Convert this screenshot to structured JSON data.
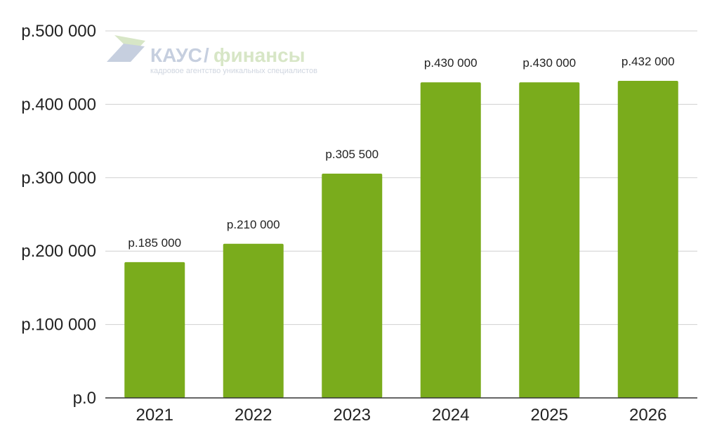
{
  "colors": {
    "bar": "#7aac1c",
    "grid": "#d0d0d0",
    "axis": "#333333",
    "watermark_blue": "#c6cfdf",
    "watermark_green": "#d7e6c6"
  },
  "watermark": {
    "brand_a": "КАУС",
    "brand_b": "финансы",
    "tagline": "кадровое агентство уникальных специалистов"
  },
  "chart_data": {
    "type": "bar",
    "categories": [
      "2021",
      "2022",
      "2023",
      "2024",
      "2025",
      "2026"
    ],
    "values": [
      185000,
      210000,
      305500,
      430000,
      430000,
      432000
    ],
    "data_labels": [
      "р.185 000",
      "р.210 000",
      "р.305 500",
      "р.430 000",
      "р.430 000",
      "р.432 000"
    ],
    "y_ticks": [
      0,
      100000,
      200000,
      300000,
      400000,
      500000
    ],
    "y_tick_labels": [
      "р.0",
      "р.100 000",
      "р.200 000",
      "р.300 000",
      "р.400 000",
      "р.500 000"
    ],
    "ylim": [
      0,
      500000
    ],
    "grid": true,
    "title": "",
    "xlabel": "",
    "ylabel": ""
  }
}
